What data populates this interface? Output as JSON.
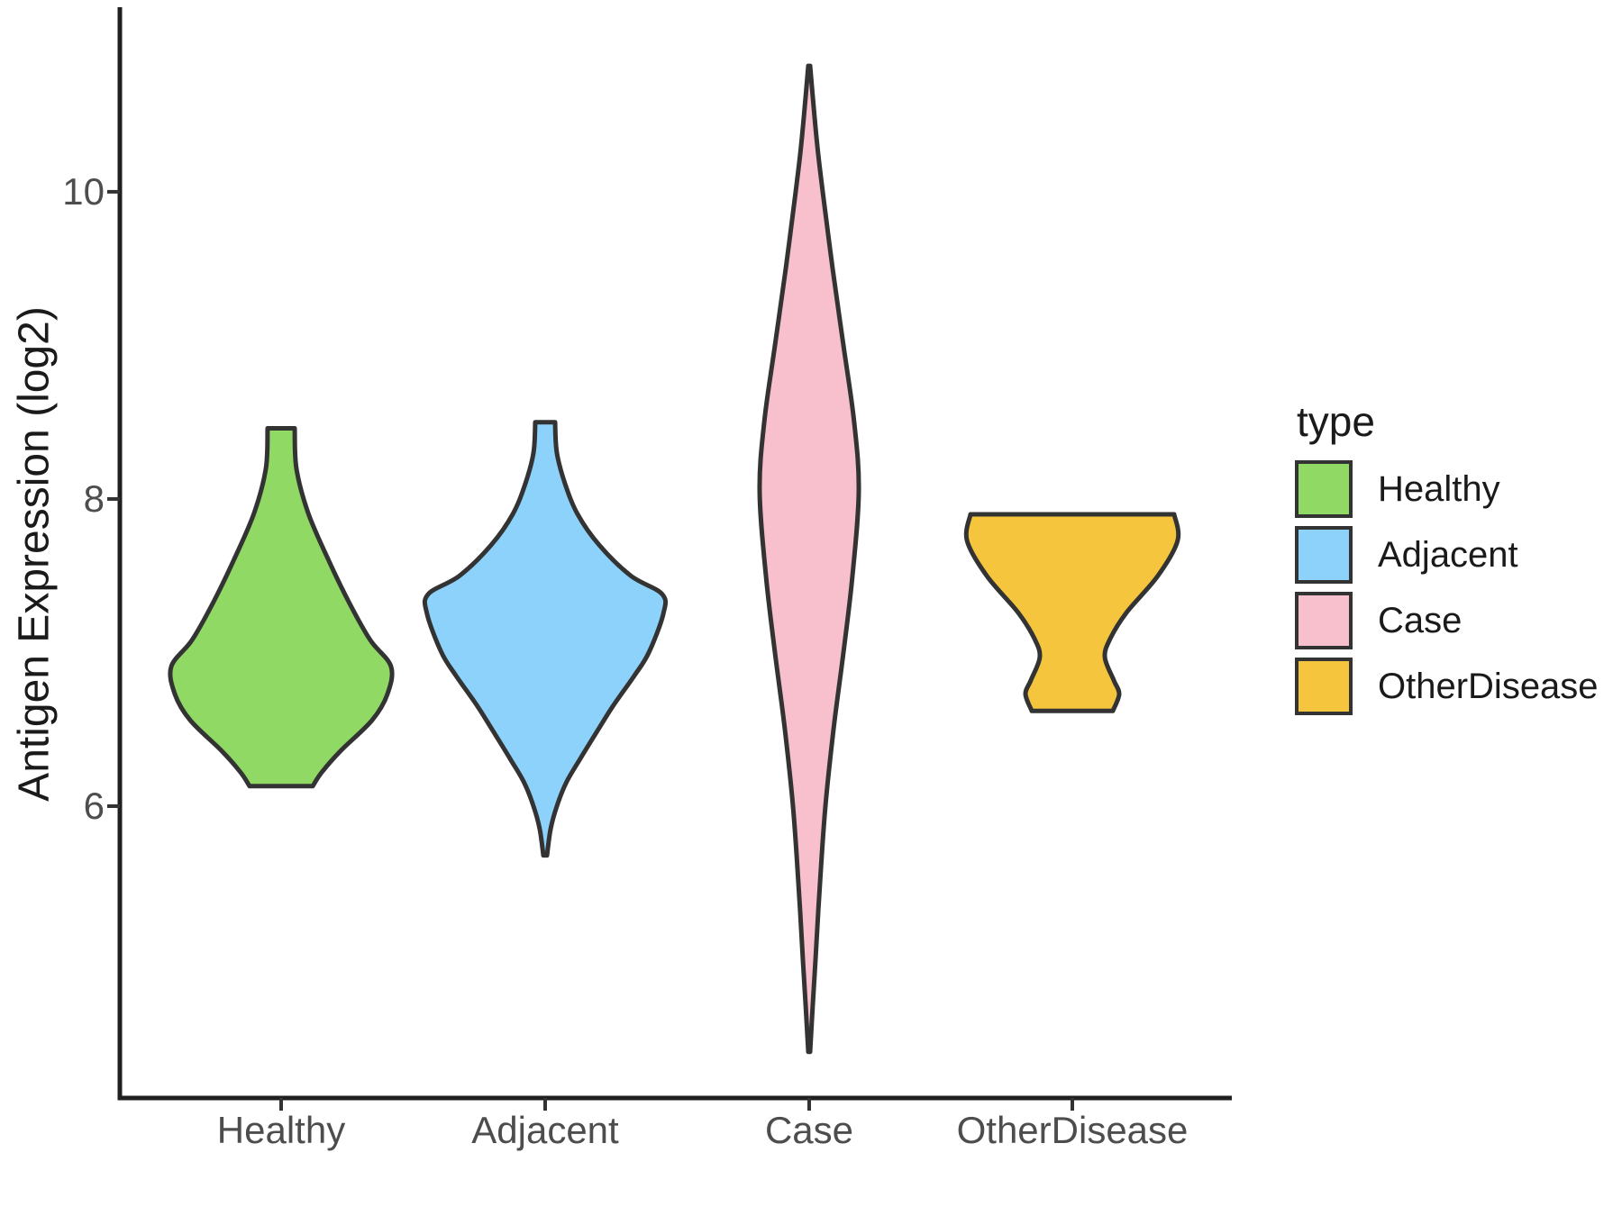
{
  "figure": {
    "background": "#FFFFFF",
    "axis_color": "#1f1f1f",
    "tick_color": "#333333",
    "tick_label_color": "#4D4D4D",
    "text_color": "#1A1A1A"
  },
  "chart_data": {
    "type": "violin",
    "title": "",
    "xlabel": "",
    "ylabel": "Antigen Expression (log2)",
    "categories": [
      "Healthy",
      "Adjacent",
      "Case",
      "OtherDisease"
    ],
    "y_ticks": [
      6,
      8,
      10
    ],
    "ylim": [
      4.1,
      11.19
    ],
    "grid": false,
    "theme": "classic",
    "outline_color": "#333333",
    "legend": {
      "title": "type",
      "position": "right",
      "entries": [
        {
          "label": "Healthy",
          "color": "#8FD964"
        },
        {
          "label": "Adjacent",
          "color": "#8DD2FA"
        },
        {
          "label": "Case",
          "color": "#F8C0CC"
        },
        {
          "label": "OtherDisease",
          "color": "#F5C53E"
        }
      ]
    },
    "series": [
      {
        "name": "Healthy",
        "color": "#8FD964",
        "min": 6.13,
        "max": 8.46,
        "peak_value": 6.91,
        "shape": "truncated",
        "profile": [
          [
            8.46,
            0.103
          ],
          [
            8.2,
            0.116
          ],
          [
            7.91,
            0.205
          ],
          [
            7.61,
            0.356
          ],
          [
            7.32,
            0.52
          ],
          [
            7.08,
            0.678
          ],
          [
            6.91,
            0.835
          ],
          [
            6.73,
            0.808
          ],
          [
            6.56,
            0.692
          ],
          [
            6.36,
            0.452
          ],
          [
            6.22,
            0.308
          ],
          [
            6.13,
            0.24
          ]
        ]
      },
      {
        "name": "Adjacent",
        "color": "#8DD2FA",
        "min": 5.68,
        "max": 8.5,
        "peak_value": 7.32,
        "shape": "lower-tail",
        "profile": [
          [
            8.5,
            0.075
          ],
          [
            8.3,
            0.089
          ],
          [
            8.1,
            0.151
          ],
          [
            7.9,
            0.247
          ],
          [
            7.7,
            0.411
          ],
          [
            7.5,
            0.651
          ],
          [
            7.38,
            0.89
          ],
          [
            7.25,
            0.897
          ],
          [
            7.0,
            0.788
          ],
          [
            6.85,
            0.678
          ],
          [
            6.65,
            0.514
          ],
          [
            6.5,
            0.404
          ],
          [
            6.3,
            0.26
          ],
          [
            6.15,
            0.158
          ],
          [
            6.0,
            0.089
          ],
          [
            5.85,
            0.041
          ],
          [
            5.68,
            0.014
          ]
        ]
      },
      {
        "name": "Case",
        "color": "#F8C0CC",
        "min": 4.4,
        "max": 10.82,
        "peak_value": 8.05,
        "shape": "spindle",
        "profile": [
          [
            10.82,
            0.007
          ],
          [
            10.55,
            0.034
          ],
          [
            10.25,
            0.068
          ],
          [
            10.0,
            0.103
          ],
          [
            9.5,
            0.178
          ],
          [
            9.0,
            0.26
          ],
          [
            8.5,
            0.342
          ],
          [
            8.05,
            0.377
          ],
          [
            7.5,
            0.329
          ],
          [
            7.0,
            0.26
          ],
          [
            6.5,
            0.185
          ],
          [
            6.0,
            0.123
          ],
          [
            5.5,
            0.082
          ],
          [
            5.0,
            0.048
          ],
          [
            4.7,
            0.027
          ],
          [
            4.4,
            0.007
          ]
        ]
      },
      {
        "name": "OtherDisease",
        "color": "#F5C53E",
        "min": 6.62,
        "max": 7.9,
        "peak_value": 7.73,
        "shape": "goblet",
        "profile": [
          [
            7.9,
            0.774
          ],
          [
            7.73,
            0.801
          ],
          [
            7.5,
            0.651
          ],
          [
            7.26,
            0.411
          ],
          [
            7.09,
            0.288
          ],
          [
            6.97,
            0.247
          ],
          [
            6.82,
            0.315
          ],
          [
            6.73,
            0.356
          ],
          [
            6.62,
            0.308
          ]
        ]
      }
    ]
  }
}
